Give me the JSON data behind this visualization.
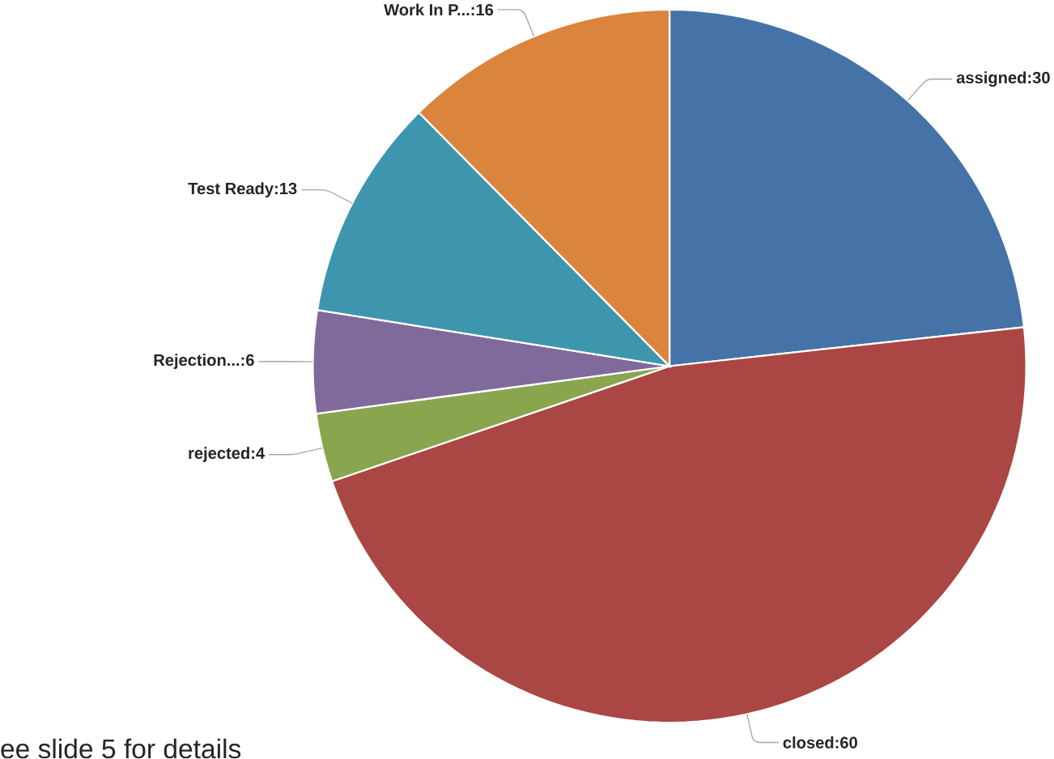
{
  "chart_data": {
    "type": "pie",
    "categories": [
      "assigned",
      "closed",
      "rejected",
      "Rejection...",
      "Test Ready",
      "Work In P..."
    ],
    "values": [
      30,
      60,
      4,
      6,
      13,
      16
    ],
    "colors": [
      "#4572a7",
      "#aa4643",
      "#89a54e",
      "#80699b",
      "#3d96ae",
      "#db843d"
    ],
    "value_labels": [
      ":30",
      ":60",
      ":4",
      ":6",
      ":13",
      ":16"
    ],
    "annotations": [
      "ee slide 5 for details"
    ]
  }
}
